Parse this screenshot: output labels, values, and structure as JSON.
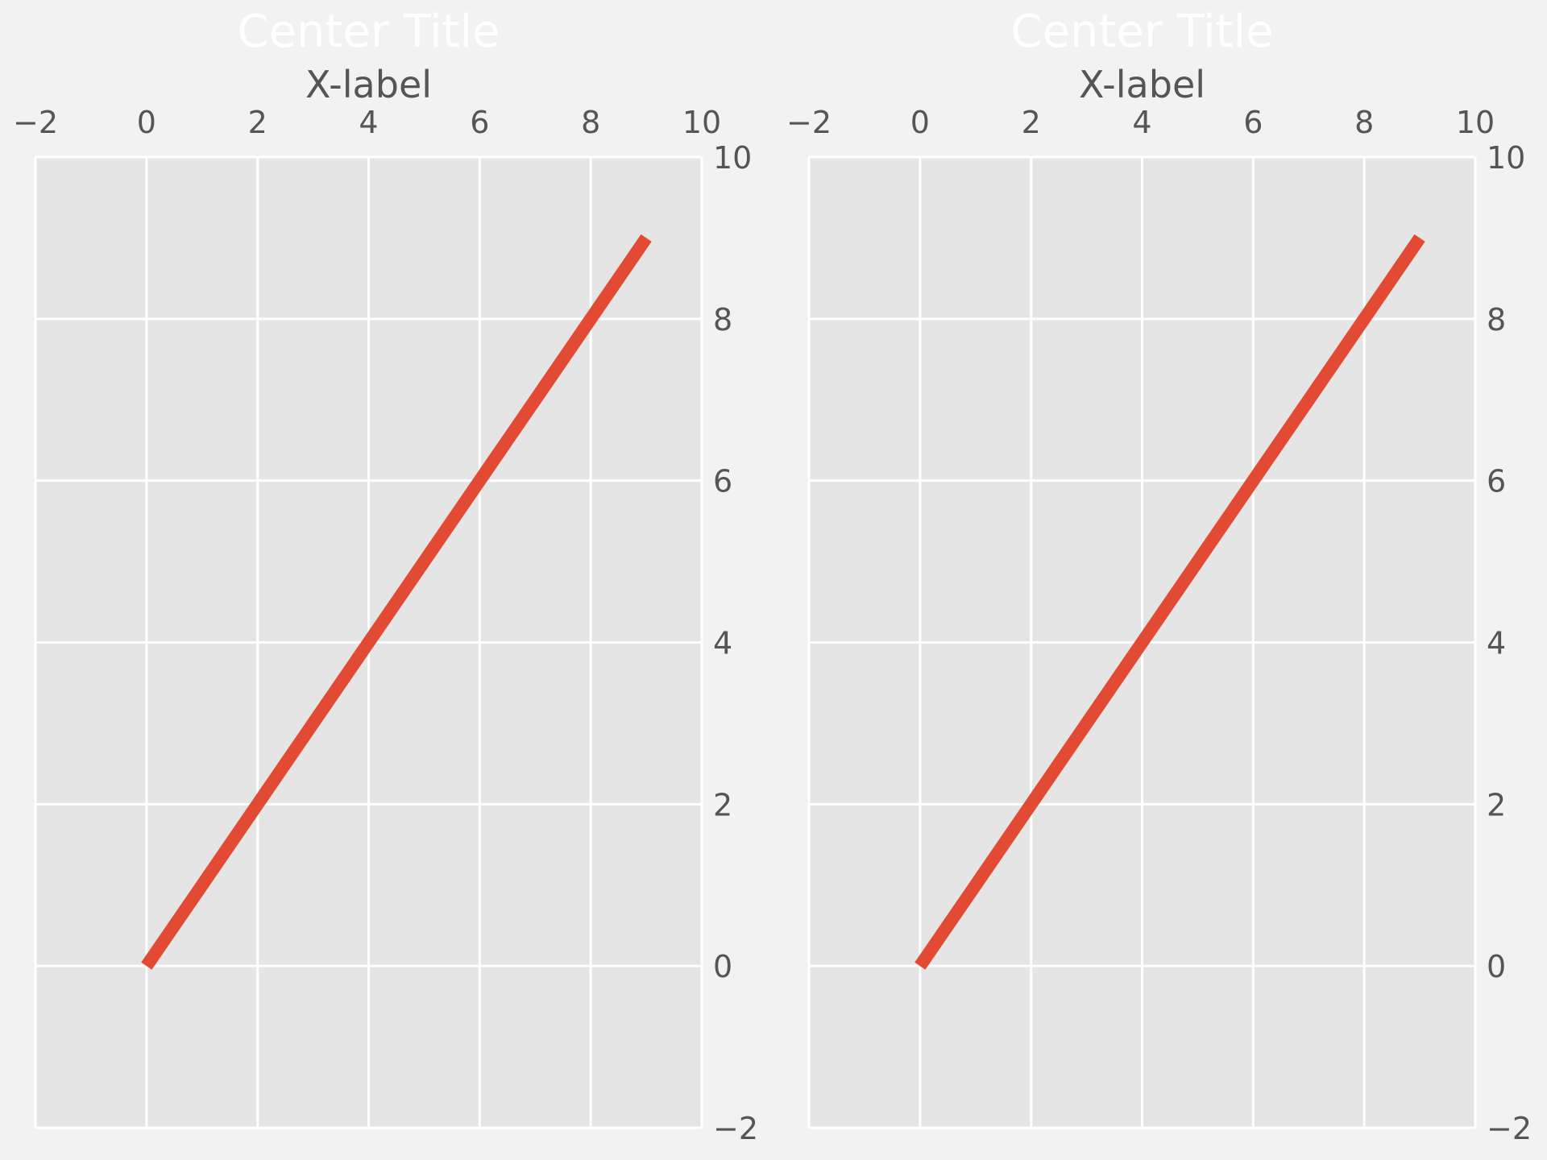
{
  "figure": {
    "background": "#f2f2f2",
    "axes_background": "#e5e5e5",
    "grid_color": "#ffffff",
    "text_color": "#555555",
    "title_color": "#ffffff"
  },
  "chart_data": [
    {
      "type": "line",
      "title": "Center Title",
      "xlabel": "X-label",
      "ylabel": "",
      "x_axis_position": "top",
      "y_axis_position": "right",
      "xlim": [
        -2,
        10
      ],
      "ylim": [
        -2,
        10
      ],
      "xticks": [
        -2,
        0,
        2,
        4,
        6,
        8,
        10
      ],
      "yticks": [
        -2,
        0,
        2,
        4,
        6,
        8,
        10
      ],
      "xtick_labels": [
        "−2",
        "0",
        "2",
        "4",
        "6",
        "8",
        "10"
      ],
      "ytick_labels": [
        "−2",
        "0",
        "2",
        "4",
        "6",
        "8",
        "10"
      ],
      "grid": true,
      "series": [
        {
          "color": "#e24a33",
          "x": [
            0,
            1,
            2,
            3,
            4,
            5,
            6,
            7,
            8,
            9
          ],
          "y": [
            0,
            1,
            2,
            3,
            4,
            5,
            6,
            7,
            8,
            9
          ]
        }
      ]
    },
    {
      "type": "line",
      "title": "Center Title",
      "xlabel": "X-label",
      "ylabel": "",
      "x_axis_position": "top",
      "y_axis_position": "right",
      "xlim": [
        -2,
        10
      ],
      "ylim": [
        -2,
        10
      ],
      "xticks": [
        -2,
        0,
        2,
        4,
        6,
        8,
        10
      ],
      "yticks": [
        -2,
        0,
        2,
        4,
        6,
        8,
        10
      ],
      "xtick_labels": [
        "−2",
        "0",
        "2",
        "4",
        "6",
        "8",
        "10"
      ],
      "ytick_labels": [
        "−2",
        "0",
        "2",
        "4",
        "6",
        "8",
        "10"
      ],
      "grid": true,
      "series": [
        {
          "color": "#e24a33",
          "x": [
            0,
            1,
            2,
            3,
            4,
            5,
            6,
            7,
            8,
            9
          ],
          "y": [
            0,
            1,
            2,
            3,
            4,
            5,
            6,
            7,
            8,
            9
          ]
        }
      ]
    }
  ]
}
